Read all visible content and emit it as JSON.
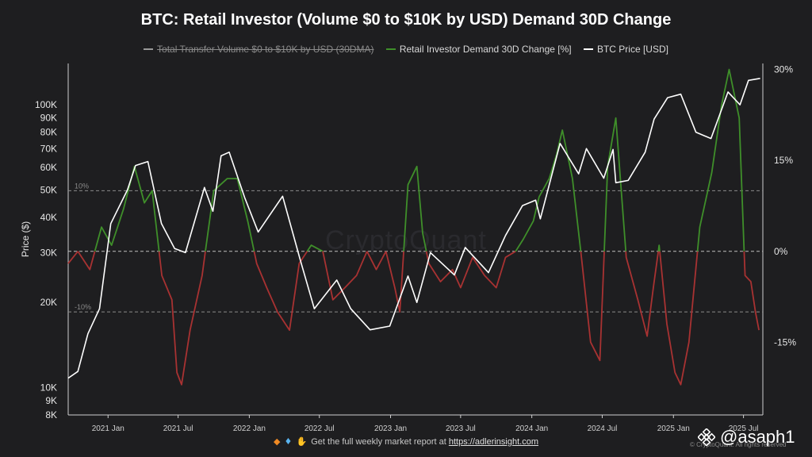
{
  "chart_data": {
    "type": "line",
    "title": "BTC: Retail Investor (Volume $0 to $10K by USD) Demand 30D Change",
    "legend": [
      {
        "name": "Total Transfer Volume $0 to $10K by USD (30DMA)",
        "color": "#9a9a9a",
        "hidden": true
      },
      {
        "name": "Retail Investor Demand 30D Change [%]",
        "color": "#3f8f2a"
      },
      {
        "name": "BTC Price [USD]",
        "color": "#ffffff"
      }
    ],
    "legend_position": "top-center",
    "ylabel_left": "Price ($)",
    "y_left_scale": "log",
    "y_left_ticks": [
      8000,
      9000,
      10000,
      20000,
      30000,
      40000,
      50000,
      60000,
      70000,
      80000,
      90000,
      100000
    ],
    "y_left_tick_labels": [
      "8K",
      "9K",
      "10K",
      "20K",
      "30K",
      "40K",
      "50K",
      "60K",
      "70K",
      "80K",
      "90K",
      "100K"
    ],
    "y_right_range": [
      -27,
      31
    ],
    "y_right_ticks": [
      30,
      15,
      0,
      -15
    ],
    "y_right_tick_labels": [
      "30%",
      "15%",
      "0%",
      "-15%"
    ],
    "x_range": [
      "2020-09-20",
      "2025-08-20"
    ],
    "x_ticks": [
      "2021-01-01",
      "2021-07-01",
      "2022-01-01",
      "2022-07-01",
      "2023-01-01",
      "2023-07-01",
      "2024-01-01",
      "2024-07-01",
      "2025-01-01",
      "2025-07-01"
    ],
    "x_tick_labels": [
      "2021 Jan",
      "2021 Jul",
      "2022 Jan",
      "2022 Jul",
      "2023 Jan",
      "2023 Jul",
      "2024 Jan",
      "2024 Jul",
      "2025 Jan",
      "2025 Jul"
    ],
    "reference_lines": [
      {
        "value": 10,
        "label": "10%"
      },
      {
        "value": 0,
        "label": ""
      },
      {
        "value": -10,
        "label": "-10%"
      }
    ],
    "grid": false,
    "series": [
      {
        "name": "BTC Price [USD]",
        "axis": "left",
        "color": "#ffffff",
        "x": [
          "2020-09-20",
          "2020-10-15",
          "2020-11-10",
          "2020-12-10",
          "2021-01-08",
          "2021-02-20",
          "2021-03-13",
          "2021-04-14",
          "2021-05-19",
          "2021-06-22",
          "2021-07-20",
          "2021-09-07",
          "2021-09-29",
          "2021-10-20",
          "2021-11-10",
          "2021-12-20",
          "2022-01-24",
          "2022-03-28",
          "2022-05-12",
          "2022-06-18",
          "2022-08-15",
          "2022-09-20",
          "2022-11-09",
          "2022-12-30",
          "2023-02-15",
          "2023-03-10",
          "2023-04-14",
          "2023-06-15",
          "2023-07-13",
          "2023-09-11",
          "2023-10-25",
          "2023-12-08",
          "2024-01-11",
          "2024-01-23",
          "2024-03-14",
          "2024-05-01",
          "2024-05-21",
          "2024-07-05",
          "2024-07-29",
          "2024-08-05",
          "2024-09-06",
          "2024-10-20",
          "2024-11-12",
          "2024-12-17",
          "2025-01-20",
          "2025-02-28",
          "2025-04-08",
          "2025-05-22",
          "2025-06-22",
          "2025-07-14",
          "2025-08-13"
        ],
        "values": [
          10800,
          11400,
          15500,
          19000,
          38000,
          50000,
          61000,
          63000,
          38000,
          31000,
          30000,
          51000,
          42000,
          66000,
          68000,
          47000,
          35500,
          47500,
          28500,
          19000,
          24000,
          19000,
          16000,
          16500,
          24800,
          20000,
          30000,
          25000,
          31300,
          25500,
          34500,
          44000,
          46000,
          39500,
          73000,
          57000,
          70000,
          55000,
          69500,
          53000,
          54000,
          68000,
          89000,
          106000,
          109000,
          80000,
          76000,
          111000,
          100000,
          122000,
          124000
        ]
      },
      {
        "name": "Retail Investor Demand 30D Change [%]",
        "axis": "right",
        "positive_color": "#3f8f2a",
        "negative_color": "#a83232",
        "x": [
          "2020-09-20",
          "2020-10-15",
          "2020-11-15",
          "2020-12-15",
          "2021-01-10",
          "2021-02-10",
          "2021-03-10",
          "2021-04-05",
          "2021-04-25",
          "2021-05-20",
          "2021-06-15",
          "2021-06-28",
          "2021-07-10",
          "2021-08-01",
          "2021-09-01",
          "2021-10-01",
          "2021-11-05",
          "2021-12-01",
          "2021-12-28",
          "2022-01-20",
          "2022-02-15",
          "2022-03-15",
          "2022-04-15",
          "2022-05-10",
          "2022-06-10",
          "2022-07-10",
          "2022-08-05",
          "2022-09-05",
          "2022-10-05",
          "2022-11-01",
          "2022-11-25",
          "2022-12-20",
          "2023-01-12",
          "2023-01-25",
          "2023-02-15",
          "2023-03-10",
          "2023-03-25",
          "2023-04-10",
          "2023-05-10",
          "2023-06-10",
          "2023-07-01",
          "2023-08-01",
          "2023-09-01",
          "2023-10-01",
          "2023-10-25",
          "2023-11-20",
          "2023-12-10",
          "2024-01-05",
          "2024-01-20",
          "2024-02-15",
          "2024-03-05",
          "2024-03-20",
          "2024-04-15",
          "2024-05-10",
          "2024-06-01",
          "2024-06-25",
          "2024-07-15",
          "2024-08-05",
          "2024-09-01",
          "2024-10-01",
          "2024-10-25",
          "2024-11-10",
          "2024-11-25",
          "2024-12-15",
          "2025-01-05",
          "2025-01-20",
          "2025-02-10",
          "2025-03-10",
          "2025-04-10",
          "2025-05-05",
          "2025-05-25",
          "2025-06-20",
          "2025-07-05",
          "2025-07-20",
          "2025-08-01",
          "2025-08-10"
        ],
        "values": [
          -2,
          0,
          -3,
          4,
          1,
          7,
          14,
          8,
          10,
          -4,
          -8,
          -20,
          -22,
          -13,
          -4,
          10,
          12,
          12,
          5,
          -2,
          -6,
          -10,
          -13,
          -2,
          1,
          0,
          -8,
          -6,
          -4,
          0,
          -3,
          0,
          -6,
          -10,
          11,
          14,
          3,
          -2,
          -5,
          -3,
          -6,
          -1,
          -4,
          -6,
          -1,
          0,
          2,
          5,
          9,
          12,
          16,
          20,
          12,
          -2,
          -15,
          -18,
          14,
          22,
          -1,
          -8,
          -14,
          -6,
          1,
          -12,
          -20,
          -22,
          -15,
          4,
          13,
          24,
          30,
          22,
          -4,
          -5,
          -10,
          -13
        ]
      }
    ]
  },
  "watermark_text": "CryptoQuant",
  "footer": {
    "text": "Get the full weekly market report at",
    "link": "https://adlerinsight.com"
  },
  "copyright": "© CryptoQuant. All rights reserved",
  "brand": {
    "handle": "@asaph1",
    "logo_icon": "binance-logo-icon"
  },
  "colors": {
    "background": "#1e1e20",
    "positive": "#3f8f2a",
    "negative": "#a83232",
    "price": "#ffffff"
  }
}
